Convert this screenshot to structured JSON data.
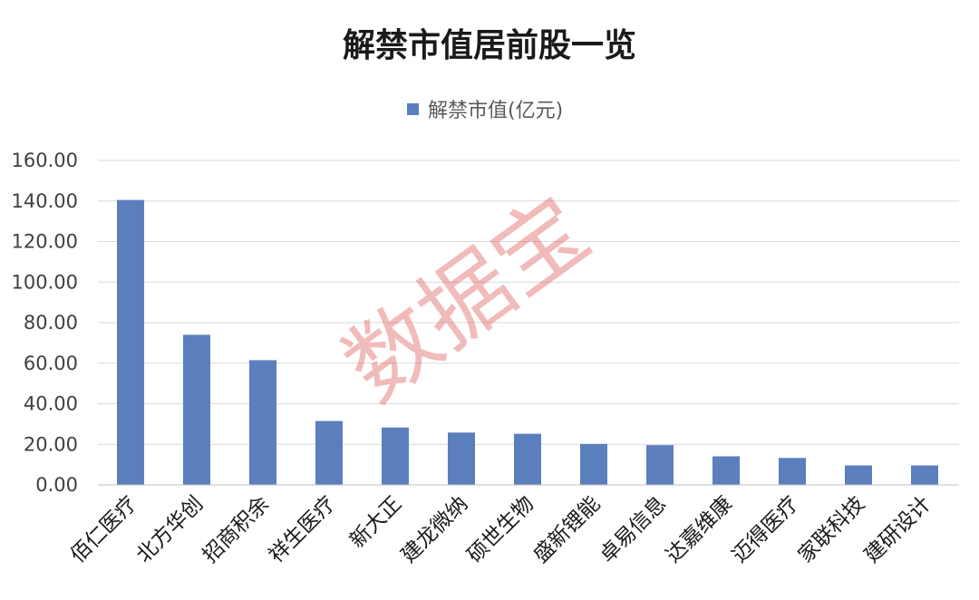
{
  "colors": {
    "bar": "#5b7fbd"
  },
  "watermark": "数据宝",
  "chart_data": {
    "type": "bar",
    "title": "解禁市值居前股一览",
    "legend": "top",
    "grid": true,
    "ylim": [
      0,
      160
    ],
    "yticks": [
      "0.00",
      "20.00",
      "40.00",
      "60.00",
      "80.00",
      "100.00",
      "120.00",
      "140.00",
      "160.00"
    ],
    "categories": [
      "佰仁医疗",
      "北方华创",
      "招商积余",
      "祥生医疗",
      "新大正",
      "建龙微纳",
      "硕世生物",
      "盛新锂能",
      "卓易信息",
      "达嘉维康",
      "迈得医疗",
      "家联科技",
      "建研设计"
    ],
    "series": [
      {
        "name": "解禁市值(亿元)",
        "values": [
          140.5,
          74.0,
          61.5,
          31.5,
          28.3,
          25.8,
          25.2,
          20.2,
          19.6,
          14.1,
          13.3,
          9.6,
          9.6
        ]
      }
    ]
  }
}
